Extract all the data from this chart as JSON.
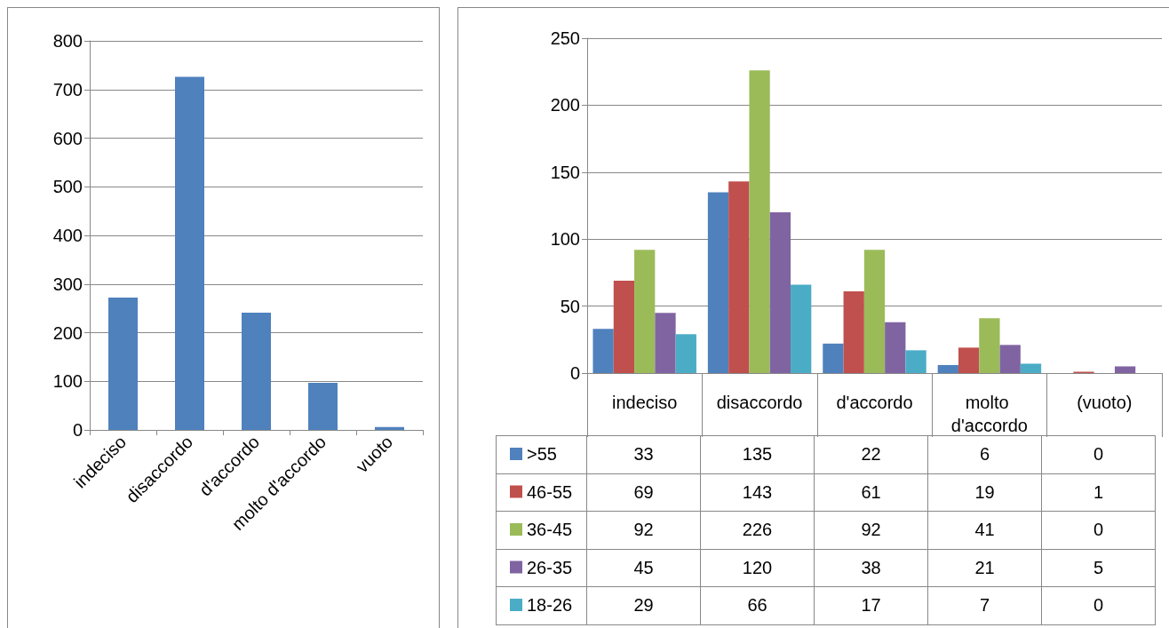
{
  "chart_data": [
    {
      "type": "bar",
      "categories": [
        "indeciso",
        "disaccordo",
        "d'accordo",
        "molto d'accordo",
        "vuoto"
      ],
      "values": [
        272,
        726,
        241,
        97,
        6
      ],
      "color": "#4f81bd",
      "ylim": [
        0,
        800
      ],
      "yticks": [
        0,
        100,
        200,
        300,
        400,
        500,
        600,
        700,
        800
      ],
      "grid": "y",
      "legend": false
    },
    {
      "type": "bar",
      "categories": [
        "indeciso",
        "disaccordo",
        "d'accordo",
        "molto d'accordo",
        "(vuoto)"
      ],
      "series": [
        {
          "name": ">55",
          "color": "#4f81bd",
          "values": [
            33,
            135,
            22,
            6,
            0
          ]
        },
        {
          "name": "46-55",
          "color": "#c0504d",
          "values": [
            69,
            143,
            61,
            19,
            1
          ]
        },
        {
          "name": "36-45",
          "color": "#9bbb59",
          "values": [
            92,
            226,
            92,
            41,
            0
          ]
        },
        {
          "name": "26-35",
          "color": "#8064a2",
          "values": [
            45,
            120,
            38,
            21,
            5
          ]
        },
        {
          "name": "18-26",
          "color": "#4bacc6",
          "values": [
            29,
            66,
            17,
            7,
            0
          ]
        }
      ],
      "ylim": [
        0,
        250
      ],
      "yticks": [
        0,
        50,
        100,
        150,
        200,
        250
      ],
      "grid": "y",
      "legend": "bottom",
      "data_labels": true
    }
  ]
}
